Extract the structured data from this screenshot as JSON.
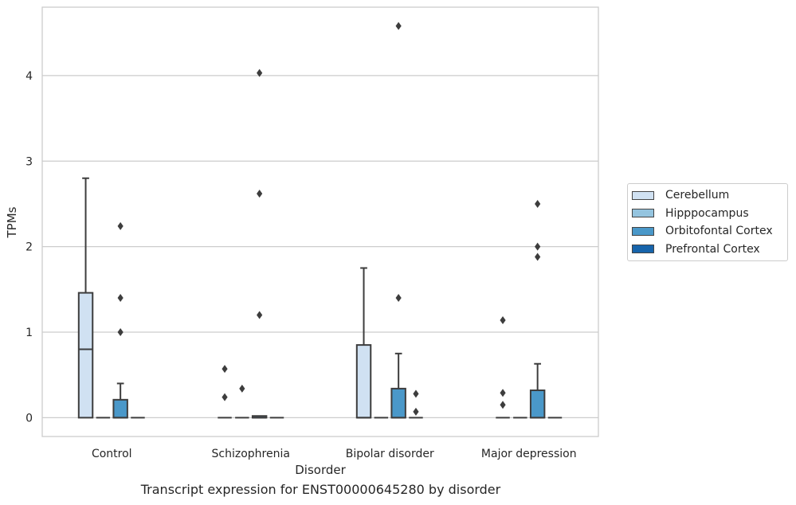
{
  "chart_data": {
    "type": "box",
    "xlabel": "Disorder",
    "ylabel": "TPMs",
    "caption": "Transcript expression for ENST00000645280 by disorder",
    "categories": [
      "Control",
      "Schizophrenia",
      "Bipolar disorder",
      "Major depression"
    ],
    "ylim": [
      -0.22,
      4.8
    ],
    "yticks": [
      0,
      1,
      2,
      3,
      4
    ],
    "grid": true,
    "legend_placement": "right",
    "series": [
      {
        "name": "Cerebellum",
        "color": "#d0e1f2",
        "boxes": [
          {
            "category": "Control",
            "whisker_low": 0,
            "q1": 0,
            "median": 0.8,
            "q3": 1.46,
            "whisker_high": 2.8,
            "outliers": []
          },
          {
            "category": "Schizophrenia",
            "whisker_low": 0,
            "q1": 0,
            "median": 0,
            "q3": 0,
            "whisker_high": 0,
            "outliers": [
              0.57,
              0.24
            ]
          },
          {
            "category": "Bipolar disorder",
            "whisker_low": 0,
            "q1": 0,
            "median": 0,
            "q3": 0.85,
            "whisker_high": 1.75,
            "outliers": []
          },
          {
            "category": "Major depression",
            "whisker_low": 0,
            "q1": 0,
            "median": 0,
            "q3": 0,
            "whisker_high": 0,
            "outliers": [
              1.14,
              0.29,
              0.15
            ]
          }
        ]
      },
      {
        "name": "Hipppocampus",
        "color": "#94c4df",
        "boxes": [
          {
            "category": "Control",
            "whisker_low": 0,
            "q1": 0,
            "median": 0,
            "q3": 0,
            "whisker_high": 0,
            "outliers": []
          },
          {
            "category": "Schizophrenia",
            "whisker_low": 0,
            "q1": 0,
            "median": 0,
            "q3": 0,
            "whisker_high": 0,
            "outliers": [
              0.34
            ]
          },
          {
            "category": "Bipolar disorder",
            "whisker_low": 0,
            "q1": 0,
            "median": 0,
            "q3": 0,
            "whisker_high": 0,
            "outliers": []
          },
          {
            "category": "Major depression",
            "whisker_low": 0,
            "q1": 0,
            "median": 0,
            "q3": 0,
            "whisker_high": 0,
            "outliers": []
          }
        ]
      },
      {
        "name": "Orbitofontal Cortex",
        "color": "#4a98c9",
        "boxes": [
          {
            "category": "Control",
            "whisker_low": 0,
            "q1": 0,
            "median": 0,
            "q3": 0.21,
            "whisker_high": 0.4,
            "outliers": [
              2.24,
              1.4,
              1.0
            ]
          },
          {
            "category": "Schizophrenia",
            "whisker_low": 0,
            "q1": 0,
            "median": 0,
            "q3": 0.02,
            "whisker_high": 0.02,
            "outliers": [
              4.03,
              2.62,
              1.2
            ]
          },
          {
            "category": "Bipolar disorder",
            "whisker_low": 0,
            "q1": 0,
            "median": 0,
            "q3": 0.34,
            "whisker_high": 0.75,
            "outliers": [
              4.58,
              1.4
            ]
          },
          {
            "category": "Major depression",
            "whisker_low": 0,
            "q1": 0,
            "median": 0,
            "q3": 0.32,
            "whisker_high": 0.63,
            "outliers": [
              2.5,
              2.0,
              1.88
            ]
          }
        ]
      },
      {
        "name": "Prefrontal Cortex",
        "color": "#1764ab",
        "boxes": [
          {
            "category": "Control",
            "whisker_low": 0,
            "q1": 0,
            "median": 0,
            "q3": 0,
            "whisker_high": 0,
            "outliers": []
          },
          {
            "category": "Schizophrenia",
            "whisker_low": 0,
            "q1": 0,
            "median": 0,
            "q3": 0,
            "whisker_high": 0,
            "outliers": []
          },
          {
            "category": "Bipolar disorder",
            "whisker_low": 0,
            "q1": 0,
            "median": 0,
            "q3": 0,
            "whisker_high": 0,
            "outliers": [
              0.28,
              0.07
            ]
          },
          {
            "category": "Major depression",
            "whisker_low": 0,
            "q1": 0,
            "median": 0,
            "q3": 0,
            "whisker_high": 0,
            "outliers": []
          }
        ]
      }
    ]
  }
}
